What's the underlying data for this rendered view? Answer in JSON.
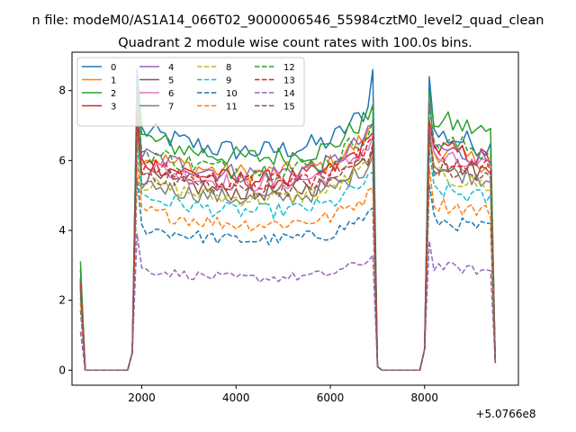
{
  "chart_data": {
    "type": "line",
    "suptitle": "n file: modeM0/AS1A14_066T02_9000006546_55984cztM0_level2_quad_clean",
    "title": "Quadrant 2 module wise count rates with 100.0s bins.",
    "xlabel": "",
    "ylabel": "",
    "x_offset_label": "+5.0766e8",
    "xlim": [
      520,
      9990
    ],
    "ylim": [
      -0.43,
      9.1
    ],
    "xticks": [
      2000,
      4000,
      6000,
      8000
    ],
    "yticks": [
      0,
      2,
      4,
      6,
      8
    ],
    "legend_position": "upper-left",
    "legend_columns": 4,
    "x_segments": [
      {
        "start": 700,
        "end": 7000,
        "step": 100
      },
      {
        "start": 7100,
        "end": 9500,
        "step": 100
      }
    ],
    "profile_template": {
      "rise": [
        2.8,
        0.0,
        0.0,
        0.0,
        0.0,
        0.0,
        0.0,
        0.0,
        0.0,
        0.0,
        0.0,
        0.0,
        0.5,
        8.0
      ],
      "drop_after_segment1": [
        0.0,
        0.0,
        0.0,
        0.0,
        0.0,
        0.0,
        0.0,
        0.0,
        0.0,
        0.0
      ],
      "segment2_rise": [
        0.6,
        7.6
      ],
      "end": 0.2
    },
    "series": [
      {
        "name": "0",
        "color": "#1f77b4",
        "style": "solid",
        "level": 6.9,
        "peak": 8.6,
        "seg2_level": 6.8
      },
      {
        "name": "1",
        "color": "#ff7f0e",
        "style": "solid",
        "level": 6.2,
        "peak": 7.4,
        "seg2_level": 6.3
      },
      {
        "name": "2",
        "color": "#2ca02c",
        "style": "solid",
        "level": 6.7,
        "peak": 8.2,
        "seg2_level": 7.2
      },
      {
        "name": "3",
        "color": "#d62728",
        "style": "solid",
        "level": 6.0,
        "peak": 7.3,
        "seg2_level": 6.4
      },
      {
        "name": "4",
        "color": "#9467bd",
        "style": "solid",
        "level": 6.2,
        "peak": 8.0,
        "seg2_level": 6.4
      },
      {
        "name": "5",
        "color": "#8c564b",
        "style": "solid",
        "level": 5.6,
        "peak": 7.0,
        "seg2_level": 6.0
      },
      {
        "name": "6",
        "color": "#e377c2",
        "style": "solid",
        "level": 5.9,
        "peak": 7.2,
        "seg2_level": 6.1
      },
      {
        "name": "7",
        "color": "#7f7f7f",
        "style": "solid",
        "level": 5.4,
        "peak": 7.0,
        "seg2_level": 5.8
      },
      {
        "name": "8",
        "color": "#bcbd22",
        "style": "dashed",
        "level": 5.4,
        "peak": 6.8,
        "seg2_level": 5.6
      },
      {
        "name": "9",
        "color": "#17becf",
        "style": "dashed",
        "level": 5.0,
        "peak": 6.5,
        "seg2_level": 5.2
      },
      {
        "name": "10",
        "color": "#1f77b4",
        "style": "dashed",
        "level": 4.1,
        "peak": 5.5,
        "seg2_level": 4.3
      },
      {
        "name": "11",
        "color": "#ff7f0e",
        "style": "dashed",
        "level": 4.6,
        "peak": 6.0,
        "seg2_level": 4.8
      },
      {
        "name": "12",
        "color": "#2ca02c",
        "style": "dashed",
        "level": 6.3,
        "peak": 7.8,
        "seg2_level": 6.6
      },
      {
        "name": "13",
        "color": "#d62728",
        "style": "dashed",
        "level": 5.9,
        "peak": 7.3,
        "seg2_level": 6.2
      },
      {
        "name": "14",
        "color": "#9467bd",
        "style": "dashed",
        "level": 2.9,
        "peak": 3.9,
        "seg2_level": 3.0
      },
      {
        "name": "15",
        "color": "#8c564b",
        "style": "dashed",
        "level": 5.7,
        "peak": 7.0,
        "seg2_level": 5.8
      }
    ]
  }
}
